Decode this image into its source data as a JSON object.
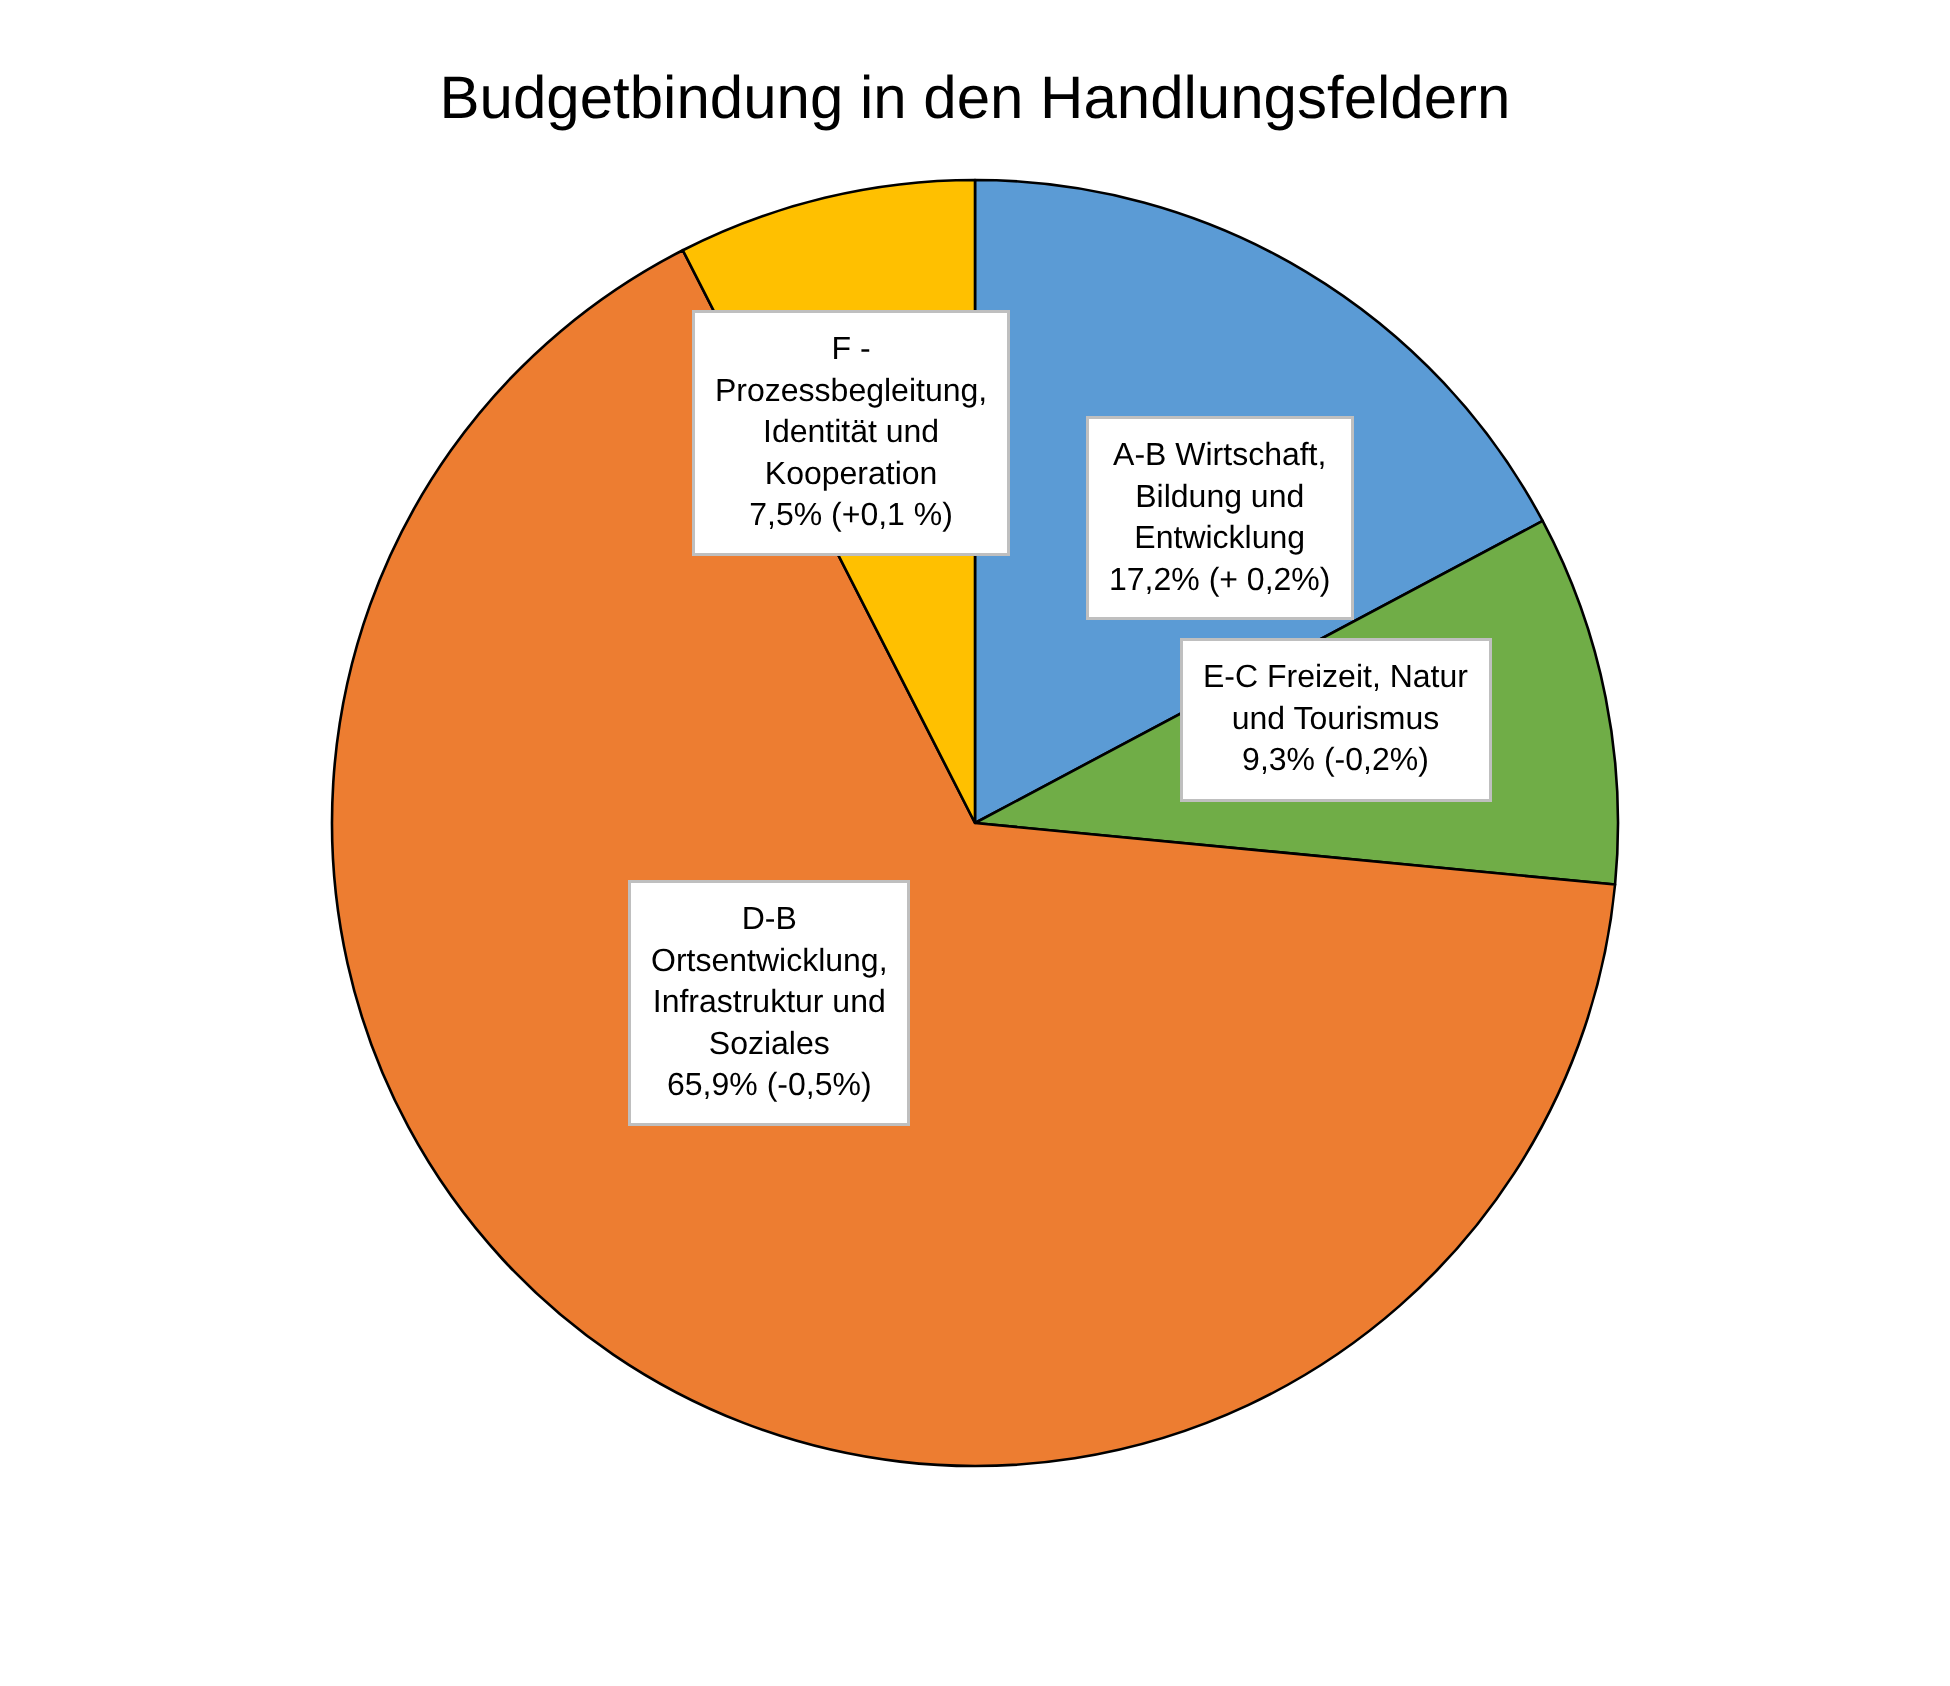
{
  "chart_data": {
    "type": "pie",
    "title": "Budgetbindung in den Handlungsfeldern",
    "categories": [
      "A-B Wirtschaft, Bildung und Entwicklung",
      "E-C Freizeit, Natur und Tourismus",
      "D-B Ortsentwicklung, Infrastruktur und Soziales",
      "F - Prozessbegleitung, Identität und Kooperation"
    ],
    "values": [
      17.2,
      9.3,
      65.9,
      7.5
    ],
    "value_labels": [
      "17,2% (+ 0,2%)",
      "9,3% (-0,2%)",
      "65,9% (-0,5%)",
      "7,5% (+0,1 %)"
    ],
    "colors": [
      "#5b9bd5",
      "#70ad47",
      "#ed7d31",
      "#ffc000"
    ],
    "legend": false
  }
}
